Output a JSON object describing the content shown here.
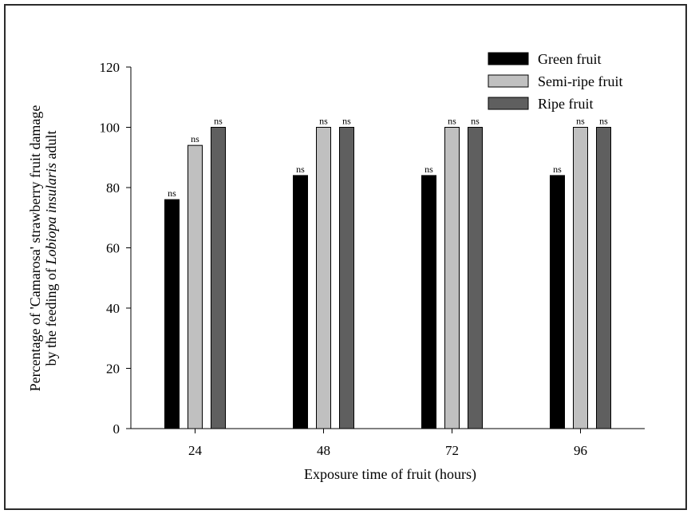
{
  "chart_data": {
    "type": "bar",
    "categories": [
      "24",
      "48",
      "72",
      "96"
    ],
    "series": [
      {
        "name": "Green fruit",
        "color": "#000000",
        "values": [
          76,
          84,
          84,
          84
        ],
        "annotations": [
          "ns",
          "ns",
          "ns",
          "ns"
        ]
      },
      {
        "name": "Semi-ripe fruit",
        "color": "#c0c0c0",
        "values": [
          94,
          100,
          100,
          100
        ],
        "annotations": [
          "ns",
          "ns",
          "ns",
          "ns"
        ]
      },
      {
        "name": "Ripe fruit",
        "color": "#5f5f5f",
        "values": [
          100,
          100,
          100,
          100
        ],
        "annotations": [
          "ns",
          "ns",
          "ns",
          "ns"
        ]
      }
    ],
    "xlabel": "Exposure time of fruit (hours)",
    "ylabel_line1": "Percentage of 'Camarosa' strawberry fruit damage",
    "ylabel_line2_prefix": "by the feeding of ",
    "ylabel_line2_italic": "Lobiopa insularis",
    "ylabel_line2_suffix": " adult",
    "ylim": [
      0,
      120
    ],
    "yticks": [
      "0",
      "20",
      "40",
      "60",
      "80",
      "100",
      "120"
    ],
    "grid": false,
    "legend": "top-right"
  }
}
